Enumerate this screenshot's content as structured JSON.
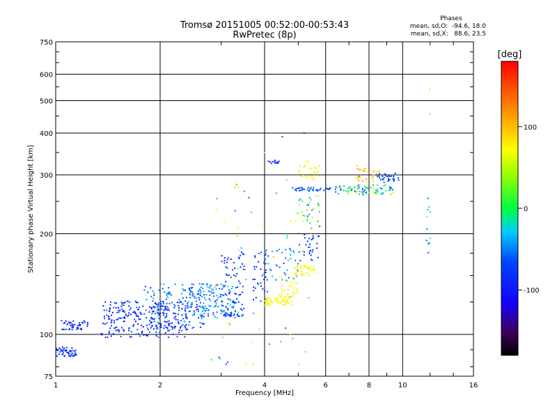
{
  "chart_data": {
    "type": "scatter",
    "title": "Tromsø 20151005 00:52:00-00:53:43",
    "subtitle": "RwPretec (8p)",
    "xlabel": "Frequency [MHz]",
    "ylabel": "Stationary phase Virtual Height [km]",
    "xscale": "log",
    "yscale": "log",
    "xlim": [
      1,
      16
    ],
    "ylim": [
      75,
      750
    ],
    "xticks": [
      1,
      2,
      4,
      6,
      8,
      10,
      16
    ],
    "xtick_labels": [
      "1",
      "2",
      "4",
      "6",
      "8",
      "10",
      "16"
    ],
    "yticks": [
      75,
      100,
      200,
      300,
      400,
      500,
      600,
      750
    ],
    "ytick_labels": [
      "75",
      "100",
      "200",
      "300",
      "400",
      "500",
      "600",
      "750"
    ],
    "grid": true,
    "stats": {
      "heading": "Phases",
      "line_o": "mean, sd,O:  -94.6, 18.0",
      "line_x": "mean, sd,X:   88.6, 23.5"
    },
    "colorbar": {
      "label": "[deg]",
      "range": [
        -180,
        180
      ],
      "ticks": [
        100,
        0,
        -100
      ],
      "tick_labels": [
        "100",
        "0",
        "-100"
      ]
    },
    "clusters": [
      {
        "f": [
          0.995,
          1.15
        ],
        "h": [
          86,
          92
        ],
        "phase": [
          -108,
          -90
        ],
        "n": 55
      },
      {
        "f": [
          1.04,
          1.25
        ],
        "h": [
          103,
          110
        ],
        "phase": [
          -110,
          -90
        ],
        "n": 45
      },
      {
        "f": [
          1.35,
          2.4
        ],
        "h": [
          98,
          126
        ],
        "phase": [
          -120,
          -80
        ],
        "n": 260
      },
      {
        "f": [
          1.8,
          2.7
        ],
        "h": [
          104,
          142
        ],
        "phase": [
          -110,
          -40
        ],
        "n": 170
      },
      {
        "f": [
          2.6,
          3.3
        ],
        "h": [
          112,
          142
        ],
        "phase": [
          -100,
          -30
        ],
        "n": 120
      },
      {
        "f": [
          3.0,
          3.5
        ],
        "h": [
          115,
          178
        ],
        "phase": [
          -110,
          -85
        ],
        "n": 60
      },
      {
        "f": [
          3.05,
          3.5
        ],
        "h": [
          113,
          115
        ],
        "phase": [
          -100,
          -90
        ],
        "n": 20
      },
      {
        "f": [
          3.7,
          4.1
        ],
        "h": [
          120,
          178
        ],
        "phase": [
          -110,
          -80
        ],
        "n": 40
      },
      {
        "f": [
          4.0,
          4.8
        ],
        "h": [
          122,
          130
        ],
        "phase": [
          75,
          100
        ],
        "n": 60
      },
      {
        "f": [
          4.4,
          5.0
        ],
        "h": [
          130,
          150
        ],
        "phase": [
          75,
          100
        ],
        "n": 30
      },
      {
        "f": [
          4.9,
          5.6
        ],
        "h": [
          150,
          162
        ],
        "phase": [
          75,
          100
        ],
        "n": 40
      },
      {
        "f": [
          4.0,
          5.0
        ],
        "h": [
          145,
          182
        ],
        "phase": [
          -100,
          -20
        ],
        "n": 35
      },
      {
        "f": [
          5.0,
          5.8
        ],
        "h": [
          165,
          200
        ],
        "phase": [
          -105,
          -90
        ],
        "n": 30
      },
      {
        "f": [
          4.9,
          5.8
        ],
        "h": [
          200,
          260
        ],
        "phase": [
          -100,
          120
        ],
        "n": 40
      },
      {
        "f": [
          4.1,
          4.4
        ],
        "h": [
          325,
          332
        ],
        "phase": [
          -108,
          -98
        ],
        "n": 12
      },
      {
        "f": [
          5.0,
          5.8
        ],
        "h": [
          290,
          330
        ],
        "phase": [
          80,
          100
        ],
        "n": 30
      },
      {
        "f": [
          4.8,
          6.2
        ],
        "h": [
          268,
          275
        ],
        "phase": [
          -100,
          -70
        ],
        "n": 40
      },
      {
        "f": [
          6.4,
          9.4
        ],
        "h": [
          262,
          280
        ],
        "phase": [
          -100,
          60
        ],
        "n": 90
      },
      {
        "f": [
          7.2,
          8.6
        ],
        "h": [
          285,
          320
        ],
        "phase": [
          90,
          140
        ],
        "n": 30
      },
      {
        "f": [
          8.4,
          9.8
        ],
        "h": [
          285,
          305
        ],
        "phase": [
          -100,
          -80
        ],
        "n": 30
      },
      {
        "f": [
          11.6,
          12.1
        ],
        "h": [
          166,
          282
        ],
        "phase": [
          -100,
          40
        ],
        "n": 12
      },
      {
        "f": [
          2.8,
          5.5
        ],
        "h": [
          80,
          300
        ],
        "phase": [
          -100,
          140
        ],
        "n": 60
      }
    ],
    "outliers": [
      {
        "f": 12.0,
        "h": 540,
        "phase": 100
      },
      {
        "f": 12.0,
        "h": 455,
        "phase": 110
      },
      {
        "f": 4.5,
        "h": 390,
        "phase": -100
      },
      {
        "f": 5.2,
        "h": 400,
        "phase": -100
      },
      {
        "f": 4.0,
        "h": 350,
        "phase": 100
      }
    ]
  }
}
